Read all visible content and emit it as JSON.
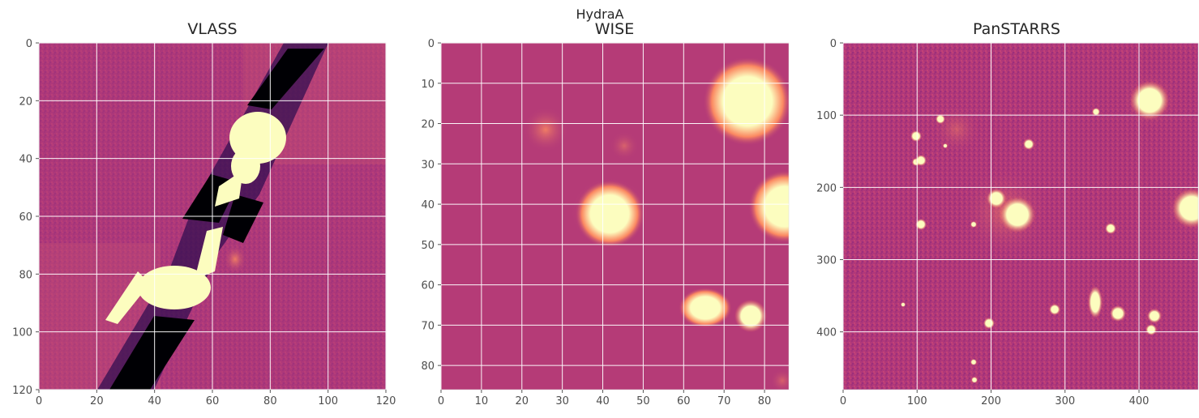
{
  "figure": {
    "suptitle": "HydraA"
  },
  "panels": [
    {
      "title": "VLASS",
      "xticks": [
        "0",
        "20",
        "40",
        "60",
        "80",
        "100",
        "120"
      ],
      "xtick_values": [
        0,
        20,
        40,
        60,
        80,
        100,
        120
      ],
      "yticks": [
        "0",
        "20",
        "40",
        "60",
        "80",
        "100",
        "120"
      ],
      "ytick_values": [
        0,
        20,
        40,
        60,
        80,
        100,
        120
      ],
      "xlim": [
        0,
        120
      ],
      "ylim": [
        0,
        120
      ],
      "colormap": "magma"
    },
    {
      "title": "WISE",
      "xticks": [
        "0",
        "10",
        "20",
        "30",
        "40",
        "50",
        "60",
        "70",
        "80"
      ],
      "xtick_values": [
        0,
        10,
        20,
        30,
        40,
        50,
        60,
        70,
        80
      ],
      "yticks": [
        "0",
        "10",
        "20",
        "30",
        "40",
        "50",
        "60",
        "70",
        "80"
      ],
      "ytick_values": [
        0,
        10,
        20,
        30,
        40,
        50,
        60,
        70,
        80
      ],
      "xlim": [
        0,
        86
      ],
      "ylim": [
        0,
        86
      ],
      "colormap": "magma"
    },
    {
      "title": "PanSTARRS",
      "xticks": [
        "0",
        "100",
        "200",
        "300",
        "400"
      ],
      "xtick_values": [
        0,
        100,
        200,
        300,
        400
      ],
      "yticks": [
        "0",
        "100",
        "200",
        "300",
        "400"
      ],
      "ytick_values": [
        0,
        100,
        200,
        300,
        400
      ],
      "xlim": [
        0,
        480
      ],
      "ylim": [
        0,
        480
      ],
      "colormap": "magma"
    }
  ],
  "colors": {
    "background": "#b33a78",
    "bright": "#fcfdbf",
    "dark": "#000004"
  }
}
